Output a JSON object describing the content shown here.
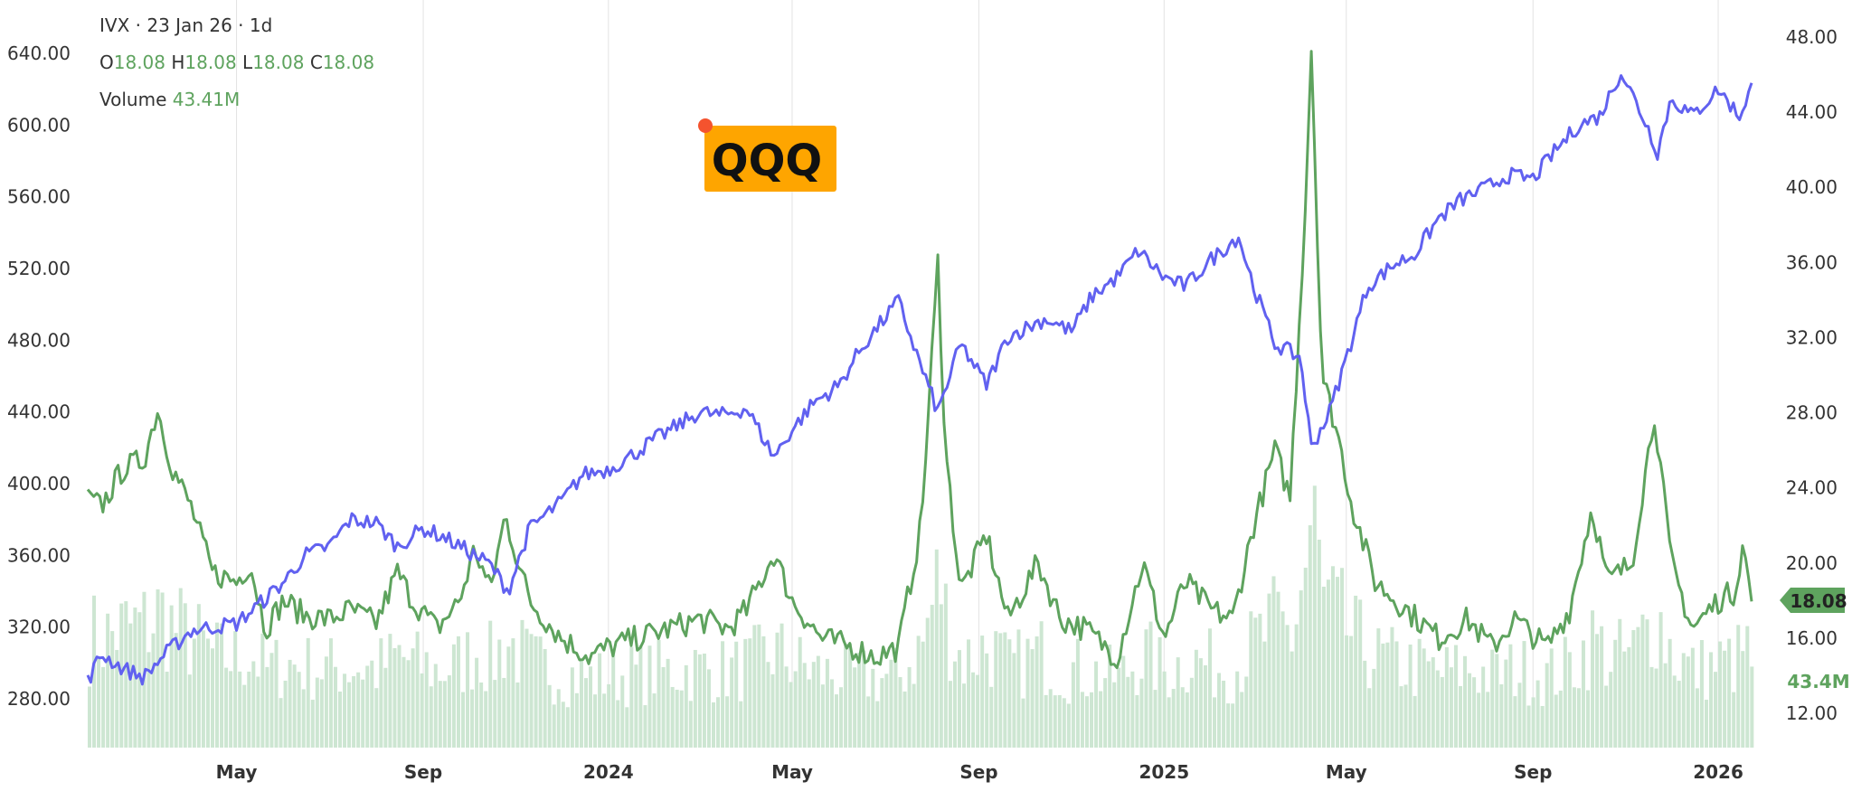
{
  "legend": {
    "symbol_line": "IVX · 23 Jan 26 · 1d",
    "o_label": "O",
    "o_value": "18.08",
    "h_label": "H",
    "h_value": "18.08",
    "l_label": "L",
    "l_value": "18.08",
    "c_label": "C",
    "c_value": "18.08",
    "volume_label": "Volume",
    "volume_value": "43.41M"
  },
  "chart_data": {
    "type": "line",
    "annotation": "QQQ",
    "last_value_badge": "18.08",
    "last_volume_badge": "43.4M",
    "colors": {
      "qqq": "#6161f0",
      "ivx": "#5ea35e",
      "volume": "#cde6d2",
      "annotation_bg": "#fea500",
      "annotation_dot": "#f4532e"
    },
    "x_range": [
      "2023-01-23",
      "2026-01-23"
    ],
    "x_ticks": [
      {
        "date": "2023-05-01",
        "label": "May"
      },
      {
        "date": "2023-09-01",
        "label": "Sep"
      },
      {
        "date": "2024-01-01",
        "label": "2024"
      },
      {
        "date": "2024-05-01",
        "label": "May"
      },
      {
        "date": "2024-09-01",
        "label": "Sep"
      },
      {
        "date": "2025-01-01",
        "label": "2025"
      },
      {
        "date": "2025-05-01",
        "label": "May"
      },
      {
        "date": "2025-09-01",
        "label": "Sep"
      },
      {
        "date": "2026-01-01",
        "label": "2026"
      }
    ],
    "left_axis": {
      "min": 280,
      "max": 640,
      "ticks": [
        "280.00",
        "320.00",
        "360.00",
        "400.00",
        "440.00",
        "480.00",
        "520.00",
        "560.00",
        "600.00",
        "640.00"
      ]
    },
    "right_axis": {
      "min": 12,
      "max": 48,
      "ticks": [
        "12.00",
        "16.00",
        "20.00",
        "24.00",
        "28.00",
        "32.00",
        "36.00",
        "40.00",
        "44.00",
        "48.00"
      ]
    },
    "series": [
      {
        "axis": "left",
        "points": [
          [
            "2023-01-23",
            290
          ],
          [
            "2023-02-01",
            305
          ],
          [
            "2023-02-15",
            297
          ],
          [
            "2023-03-01",
            292
          ],
          [
            "2023-03-15",
            305
          ],
          [
            "2023-04-01",
            318
          ],
          [
            "2023-04-15",
            320
          ],
          [
            "2023-05-01",
            322
          ],
          [
            "2023-05-15",
            332
          ],
          [
            "2023-06-01",
            345
          ],
          [
            "2023-06-15",
            360
          ],
          [
            "2023-07-01",
            365
          ],
          [
            "2023-07-15",
            380
          ],
          [
            "2023-08-01",
            378
          ],
          [
            "2023-08-15",
            365
          ],
          [
            "2023-09-01",
            375
          ],
          [
            "2023-09-15",
            370
          ],
          [
            "2023-10-01",
            362
          ],
          [
            "2023-10-15",
            355
          ],
          [
            "2023-10-27",
            340
          ],
          [
            "2023-11-10",
            375
          ],
          [
            "2023-12-01",
            390
          ],
          [
            "2023-12-15",
            405
          ],
          [
            "2024-01-01",
            408
          ],
          [
            "2024-01-15",
            415
          ],
          [
            "2024-02-01",
            425
          ],
          [
            "2024-02-15",
            432
          ],
          [
            "2024-03-01",
            440
          ],
          [
            "2024-03-15",
            438
          ],
          [
            "2024-04-01",
            442
          ],
          [
            "2024-04-19",
            415
          ],
          [
            "2024-05-01",
            430
          ],
          [
            "2024-05-15",
            445
          ],
          [
            "2024-06-01",
            455
          ],
          [
            "2024-06-15",
            475
          ],
          [
            "2024-07-10",
            502
          ],
          [
            "2024-07-25",
            465
          ],
          [
            "2024-08-05",
            440
          ],
          [
            "2024-08-20",
            478
          ],
          [
            "2024-09-06",
            455
          ],
          [
            "2024-09-20",
            482
          ],
          [
            "2024-10-15",
            492
          ],
          [
            "2024-11-01",
            485
          ],
          [
            "2024-11-15",
            505
          ],
          [
            "2024-12-01",
            515
          ],
          [
            "2024-12-15",
            530
          ],
          [
            "2025-01-01",
            515
          ],
          [
            "2025-01-15",
            510
          ],
          [
            "2025-02-01",
            525
          ],
          [
            "2025-02-19",
            538
          ],
          [
            "2025-03-01",
            510
          ],
          [
            "2025-03-15",
            478
          ],
          [
            "2025-04-01",
            470
          ],
          [
            "2025-04-08",
            420
          ],
          [
            "2025-04-20",
            440
          ],
          [
            "2025-05-01",
            470
          ],
          [
            "2025-05-15",
            510
          ],
          [
            "2025-06-01",
            522
          ],
          [
            "2025-06-15",
            528
          ],
          [
            "2025-07-01",
            548
          ],
          [
            "2025-07-15",
            558
          ],
          [
            "2025-08-01",
            565
          ],
          [
            "2025-08-15",
            572
          ],
          [
            "2025-09-01",
            570
          ],
          [
            "2025-09-15",
            585
          ],
          [
            "2025-10-01",
            600
          ],
          [
            "2025-10-15",
            605
          ],
          [
            "2025-10-29",
            630
          ],
          [
            "2025-11-15",
            600
          ],
          [
            "2025-11-22",
            585
          ],
          [
            "2025-12-01",
            615
          ],
          [
            "2025-12-15",
            605
          ],
          [
            "2026-01-01",
            620
          ],
          [
            "2026-01-15",
            605
          ],
          [
            "2026-01-23",
            622
          ]
        ]
      },
      {
        "axis": "right",
        "points": [
          [
            "2023-01-23",
            23.4
          ],
          [
            "2023-02-01",
            23.0
          ],
          [
            "2023-02-15",
            25.0
          ],
          [
            "2023-03-01",
            25.5
          ],
          [
            "2023-03-10",
            28.2
          ],
          [
            "2023-03-20",
            25.0
          ],
          [
            "2023-04-01",
            23.0
          ],
          [
            "2023-04-15",
            19.5
          ],
          [
            "2023-05-01",
            19.0
          ],
          [
            "2023-05-10",
            20.0
          ],
          [
            "2023-05-20",
            16.5
          ],
          [
            "2023-06-01",
            18.0
          ],
          [
            "2023-06-15",
            17.2
          ],
          [
            "2023-07-01",
            17.0
          ],
          [
            "2023-07-15",
            17.5
          ],
          [
            "2023-08-01",
            16.8
          ],
          [
            "2023-08-15",
            19.5
          ],
          [
            "2023-08-25",
            18.0
          ],
          [
            "2023-09-10",
            16.5
          ],
          [
            "2023-09-25",
            18.0
          ],
          [
            "2023-10-05",
            20.8
          ],
          [
            "2023-10-15",
            18.5
          ],
          [
            "2023-10-25",
            22.5
          ],
          [
            "2023-11-10",
            18.0
          ],
          [
            "2023-12-01",
            16.0
          ],
          [
            "2023-12-20",
            15.0
          ],
          [
            "2024-01-01",
            15.5
          ],
          [
            "2024-01-20",
            16.0
          ],
          [
            "2024-02-10",
            16.5
          ],
          [
            "2024-03-01",
            17.0
          ],
          [
            "2024-03-20",
            16.5
          ],
          [
            "2024-04-01",
            17.5
          ],
          [
            "2024-04-19",
            20.5
          ],
          [
            "2024-05-01",
            18.0
          ],
          [
            "2024-05-20",
            16.0
          ],
          [
            "2024-06-10",
            15.5
          ],
          [
            "2024-06-25",
            15.0
          ],
          [
            "2024-07-10",
            15.5
          ],
          [
            "2024-07-25",
            22.0
          ],
          [
            "2024-08-05",
            36.0
          ],
          [
            "2024-08-10",
            26.0
          ],
          [
            "2024-08-20",
            18.5
          ],
          [
            "2024-09-06",
            21.5
          ],
          [
            "2024-09-20",
            17.0
          ],
          [
            "2024-10-10",
            20.0
          ],
          [
            "2024-10-25",
            17.0
          ],
          [
            "2024-11-10",
            16.5
          ],
          [
            "2024-12-01",
            15.0
          ],
          [
            "2024-12-18",
            20.0
          ],
          [
            "2025-01-01",
            16.0
          ],
          [
            "2025-01-15",
            19.0
          ],
          [
            "2025-02-01",
            17.5
          ],
          [
            "2025-02-15",
            17.0
          ],
          [
            "2025-03-01",
            22.0
          ],
          [
            "2025-03-15",
            26.0
          ],
          [
            "2025-03-25",
            23.5
          ],
          [
            "2025-04-04",
            39.0
          ],
          [
            "2025-04-08",
            47.5
          ],
          [
            "2025-04-15",
            30.0
          ],
          [
            "2025-04-25",
            27.0
          ],
          [
            "2025-05-05",
            23.0
          ],
          [
            "2025-05-20",
            19.0
          ],
          [
            "2025-06-10",
            17.5
          ],
          [
            "2025-07-01",
            16.0
          ],
          [
            "2025-07-20",
            17.0
          ],
          [
            "2025-08-05",
            15.5
          ],
          [
            "2025-08-20",
            17.0
          ],
          [
            "2025-09-10",
            15.5
          ],
          [
            "2025-09-25",
            17.5
          ],
          [
            "2025-10-10",
            23.0
          ],
          [
            "2025-10-20",
            19.0
          ],
          [
            "2025-11-05",
            20.0
          ],
          [
            "2025-11-20",
            28.0
          ],
          [
            "2025-12-01",
            20.0
          ],
          [
            "2025-12-15",
            16.5
          ],
          [
            "2026-01-01",
            18.0
          ],
          [
            "2026-01-12",
            18.5
          ],
          [
            "2026-01-17",
            21.0
          ],
          [
            "2026-01-23",
            18.08
          ]
        ]
      }
    ]
  }
}
